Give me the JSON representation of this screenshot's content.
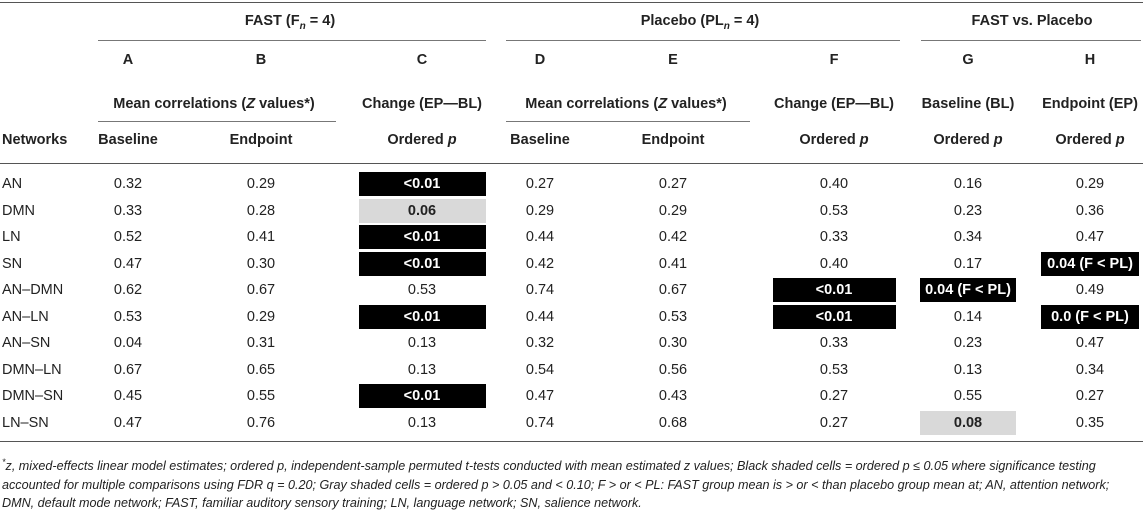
{
  "groups": {
    "fast": "FAST (F",
    "fast_sub": "n",
    "fast_tail": " = 4)",
    "placebo": "Placebo (PL",
    "placebo_sub": "n",
    "placebo_tail": " = 4)",
    "vs": "FAST vs. Placebo"
  },
  "letters": [
    "A",
    "B",
    "C",
    "D",
    "E",
    "F",
    "G",
    "H"
  ],
  "sub_headers": {
    "mean_corr_pre": "Mean correlations (",
    "mean_corr_z": "Z",
    "mean_corr_post": " values*)",
    "change": "Change (EP—BL)",
    "baseline_bl": "Baseline (BL)",
    "endpoint_ep": "Endpoint (EP)"
  },
  "col_headers": {
    "networks": "Networks",
    "baseline": "Baseline",
    "endpoint": "Endpoint",
    "ordered_p": "Ordered",
    "p": "p"
  },
  "rows": [
    {
      "name": "AN",
      "a": "0.32",
      "b": "0.29",
      "c": "<0.01",
      "d": "0.27",
      "e": "0.27",
      "f": "0.40",
      "g": "0.16",
      "h": "0.29"
    },
    {
      "name": "DMN",
      "a": "0.33",
      "b": "0.28",
      "c": "0.06",
      "d": "0.29",
      "e": "0.29",
      "f": "0.53",
      "g": "0.23",
      "h": "0.36"
    },
    {
      "name": "LN",
      "a": "0.52",
      "b": "0.41",
      "c": "<0.01",
      "d": "0.44",
      "e": "0.42",
      "f": "0.33",
      "g": "0.34",
      "h": "0.47"
    },
    {
      "name": "SN",
      "a": "0.47",
      "b": "0.30",
      "c": "<0.01",
      "d": "0.42",
      "e": "0.41",
      "f": "0.40",
      "g": "0.17",
      "h": "0.04 (F < PL)"
    },
    {
      "name": "AN–DMN",
      "a": "0.62",
      "b": "0.67",
      "c": "0.53",
      "d": "0.74",
      "e": "0.67",
      "f": "<0.01",
      "g": "0.04 (F < PL)",
      "h": "0.49"
    },
    {
      "name": "AN–LN",
      "a": "0.53",
      "b": "0.29",
      "c": "<0.01",
      "d": "0.44",
      "e": "0.53",
      "f": "<0.01",
      "g": "0.14",
      "h": "0.0 (F < PL)"
    },
    {
      "name": "AN–SN",
      "a": "0.04",
      "b": "0.31",
      "c": "0.13",
      "d": "0.32",
      "e": "0.30",
      "f": "0.33",
      "g": "0.23",
      "h": "0.47"
    },
    {
      "name": "DMN–LN",
      "a": "0.67",
      "b": "0.65",
      "c": "0.13",
      "d": "0.54",
      "e": "0.56",
      "f": "0.53",
      "g": "0.13",
      "h": "0.34"
    },
    {
      "name": "DMN–SN",
      "a": "0.45",
      "b": "0.55",
      "c": "<0.01",
      "d": "0.47",
      "e": "0.43",
      "f": "0.27",
      "g": "0.55",
      "h": "0.27"
    },
    {
      "name": "LN–SN",
      "a": "0.47",
      "b": "0.76",
      "c": "0.13",
      "d": "0.74",
      "e": "0.68",
      "f": "0.27",
      "g": "0.08",
      "h": "0.35"
    }
  ],
  "shading": {
    "black": "#000000",
    "gray": "#d9d9d9"
  },
  "footnote": {
    "star": "*",
    "text": "z, mixed-effects linear model estimates; ordered p, independent-sample permuted t-tests conducted with mean estimated z values; Black shaded cells = ordered p ≤ 0.05 where significance testing accounted for multiple comparisons using FDR q = 0.20; Gray shaded cells = ordered p > 0.05 and < 0.10; F > or < PL: FAST group mean is > or < than placebo group mean at; AN, attention network; DMN, default mode network; FAST, familiar auditory sensory training; LN, language network; SN, salience network."
  }
}
